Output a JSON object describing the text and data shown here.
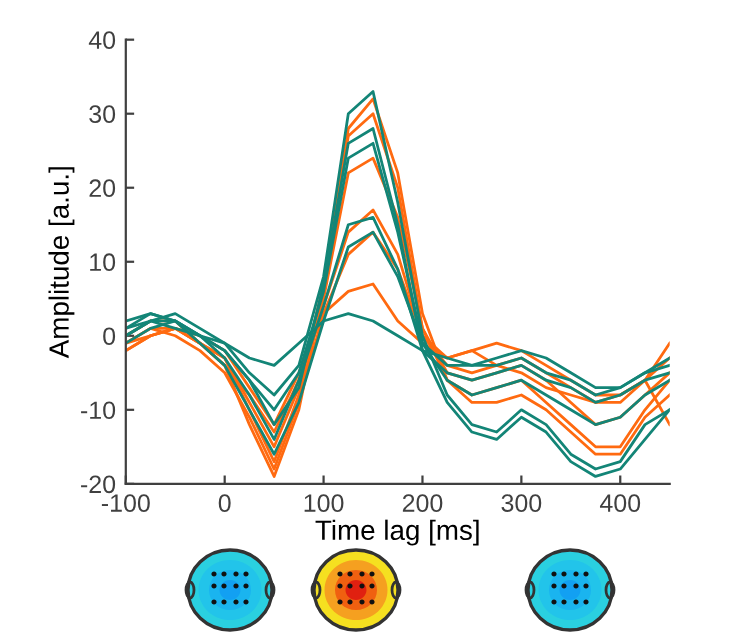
{
  "chart_data": {
    "type": "line",
    "xlabel": "Time lag [ms]",
    "ylabel": "Amplitude [a.u.]",
    "x": [
      -100,
      -75,
      -50,
      -25,
      0,
      25,
      50,
      75,
      100,
      125,
      150,
      175,
      200,
      225,
      250,
      275,
      300,
      325,
      350,
      375,
      400,
      425,
      450
    ],
    "xlim": [
      -100,
      450
    ],
    "xticks": [
      -100,
      0,
      100,
      200,
      300,
      400
    ],
    "ylim": [
      -20,
      40
    ],
    "yticks": [
      -20,
      -10,
      0,
      10,
      20,
      30,
      40
    ],
    "grid": false,
    "legend": false,
    "line_style": "solid",
    "marker": "none",
    "series": [
      {
        "color": "#ff6a10",
        "values": [
          -1,
          1,
          1,
          -1,
          -4,
          -12,
          -19,
          -10,
          6,
          28,
          32,
          22,
          3,
          -6,
          -8,
          -7,
          -6,
          -9,
          -12,
          -15,
          -15,
          -10,
          -6
        ]
      },
      {
        "color": "#ff6a10",
        "values": [
          -2,
          0,
          1,
          -1,
          -3,
          -10,
          -17,
          -8,
          5,
          22,
          24,
          16,
          1,
          -5,
          -6,
          -5,
          -4,
          -6,
          -9,
          -12,
          -11,
          -8,
          -5
        ]
      },
      {
        "color": "#ff6a10",
        "values": [
          -1,
          1,
          0,
          -2,
          -5,
          -11,
          -18,
          -9,
          3,
          11,
          14,
          9,
          0,
          -4,
          -5,
          -4,
          -3,
          -5,
          -7,
          -9,
          -9,
          -6,
          -3
        ]
      },
      {
        "color": "#ff6a10",
        "values": [
          -1,
          0,
          1,
          0,
          -2,
          -7,
          -12,
          -5,
          3,
          6,
          7,
          2,
          -1,
          -3,
          -2,
          -4,
          -5,
          -7,
          -8,
          -9,
          -8,
          -6,
          -12
        ]
      },
      {
        "color": "#ff6a10",
        "values": [
          0,
          2,
          2,
          -1,
          -3,
          -9,
          -15,
          -7,
          7,
          27,
          30,
          20,
          1,
          -6,
          -9,
          -9,
          -8,
          -10,
          -13,
          -16,
          -16,
          -11,
          -8
        ]
      },
      {
        "color": "#ff6a10",
        "values": [
          -2,
          0,
          1,
          -1,
          -4,
          -8,
          -13,
          -6,
          4,
          14,
          17,
          11,
          0,
          -3,
          -2,
          -1,
          -2,
          -4,
          -6,
          -8,
          -8,
          -6,
          -1
        ]
      },
      {
        "color": "#138577",
        "values": [
          0,
          2,
          3,
          1,
          -1,
          -5,
          -8,
          -4,
          8,
          30,
          33,
          18,
          0,
          -8,
          -12,
          -13,
          -10,
          -12,
          -16,
          -18,
          -17,
          -12,
          -10
        ]
      },
      {
        "color": "#138577",
        "values": [
          1,
          3,
          2,
          0,
          -2,
          -6,
          -10,
          -5,
          6,
          24,
          26,
          14,
          -1,
          -6,
          -8,
          -7,
          -6,
          -8,
          -10,
          -12,
          -11,
          -8,
          -6
        ]
      },
      {
        "color": "#138577",
        "values": [
          0,
          2,
          2,
          0,
          -3,
          -8,
          -14,
          -6,
          4,
          15,
          16,
          9,
          -2,
          -5,
          -6,
          -5,
          -4,
          -6,
          -7,
          -9,
          -8,
          -6,
          -5
        ]
      },
      {
        "color": "#138577",
        "values": [
          2,
          3,
          2,
          -1,
          -4,
          -10,
          -16,
          -9,
          2,
          12,
          14,
          8,
          -1,
          -4,
          -4,
          -3,
          -2,
          -3,
          -5,
          -7,
          -7,
          -5,
          -3
        ]
      },
      {
        "color": "#138577",
        "values": [
          1,
          2,
          1,
          0,
          -1,
          -3,
          -4,
          -1,
          2,
          3,
          2,
          0,
          -2,
          -3,
          -4,
          -4,
          -3,
          -5,
          -6,
          -8,
          -7,
          -5,
          -4
        ]
      },
      {
        "color": "#138577",
        "values": [
          -1,
          1,
          2,
          0,
          -2,
          -6,
          -12,
          -7,
          7,
          26,
          28,
          15,
          -2,
          -9,
          -13,
          -14,
          -11,
          -13,
          -17,
          -19,
          -18,
          -14,
          -10
        ]
      }
    ]
  }
}
